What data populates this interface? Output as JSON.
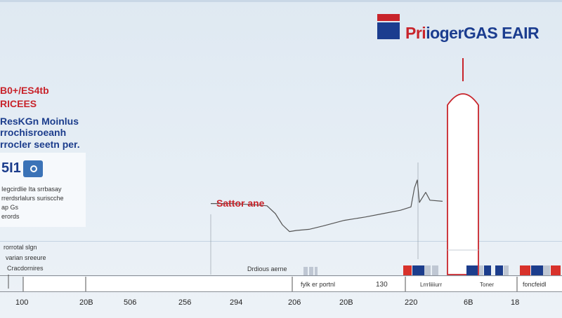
{
  "header": {
    "brand_red": "Pri",
    "brand_blue": "iogerGAS EAIR",
    "logo_colors": {
      "red": "#c8242b",
      "blue": "#1b3d8f"
    }
  },
  "sidebar": {
    "lines": [
      "B0+/ES4tb",
      "RICEES",
      "ResKGn Moinlus",
      "rrochisroeanh",
      "rrocler seetn per."
    ]
  },
  "card": {
    "number": "5I1",
    "icon": "cube-icon",
    "lines": [
      "Iegcirdlie  Ita  srrbasay",
      "rrerdsrlalurs  suriscche",
      "ap Gs",
      "erords"
    ]
  },
  "notes": {
    "left": [
      "rorrotal slgn",
      "varian sreeure",
      "Cracdornires"
    ],
    "series_label": "Sattor ane",
    "bar_label": "Drdious aerne",
    "pair_label": "fylk er portnl",
    "value_label": "130",
    "right_label_1": "Lrrrliiiiurr",
    "right_label_2": "Toner",
    "far_right_label": "foncfeidl"
  },
  "chart_data": {
    "type": "line",
    "series": [
      {
        "name": "Sattor ane",
        "color": "#555555",
        "x": [
          300,
          330,
          360,
          380,
          392,
          402,
          412,
          422,
          440,
          460,
          490,
          520,
          545,
          570,
          585,
          590,
          594,
          597,
          600,
          606,
          612,
          630
        ],
        "y": [
          64,
          64,
          63,
          62,
          55,
          45,
          39,
          40,
          41,
          44,
          49,
          52,
          55,
          58,
          61,
          78,
          85,
          65,
          68,
          74,
          67,
          66
        ]
      }
    ],
    "xaxis_ticks": [
      "100",
      "20B",
      "506",
      "256",
      "294",
      "206",
      "20B",
      "220",
      "6B",
      "18"
    ],
    "ylim": [
      0,
      100
    ],
    "grid": false,
    "colors": {
      "red": "#d8322b",
      "blue": "#1c3d8c",
      "gray": "#bfc7d3",
      "rocket_outline": "#c8242b"
    }
  }
}
